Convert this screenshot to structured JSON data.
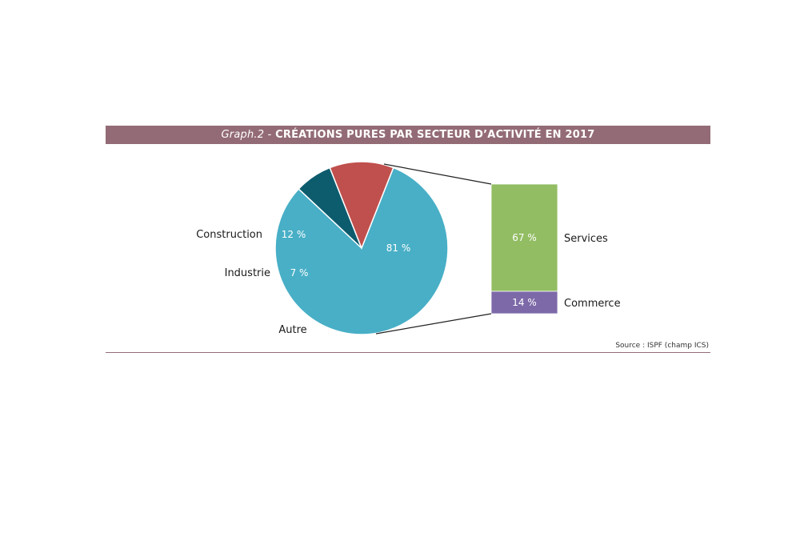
{
  "title": {
    "prefix": "Graph.2 -",
    "main": "CRÉATIONS PURES PAR SECTEUR D’ACTIVITÉ EN 2017"
  },
  "source": "Source : ISPF (champ ICS)",
  "colors": {
    "header": "#936b76",
    "autre": "#48afc6",
    "construction": "#c0504d",
    "industrie": "#0d5c6e",
    "services": "#92bd63",
    "commerce": "#7d69a8",
    "connector": "#222222"
  },
  "chart_data": [
    {
      "type": "pie",
      "labels": [
        "Autre",
        "Construction",
        "Industrie"
      ],
      "values": [
        81,
        12,
        7
      ],
      "value_labels": [
        "81 %",
        "12 %",
        "7 %"
      ],
      "colors": [
        "#48afc6",
        "#c0504d",
        "#0d5c6e"
      ]
    },
    {
      "type": "bar",
      "stacked": true,
      "labels": [
        "Services",
        "Commerce"
      ],
      "values": [
        67,
        14
      ],
      "value_labels": [
        "67 %",
        "14 %"
      ],
      "colors": [
        "#92bd63",
        "#7d69a8"
      ]
    }
  ]
}
